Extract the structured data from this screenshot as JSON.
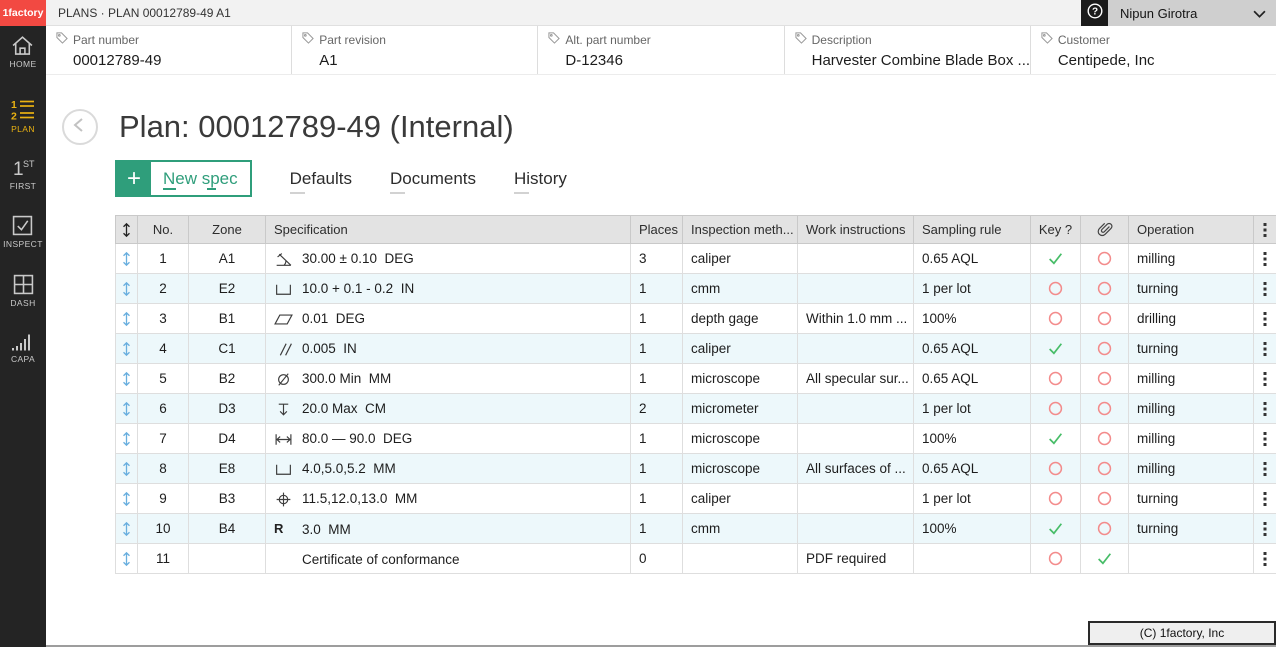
{
  "topbar": {
    "logo": "1factory",
    "breadcrumb": "PLANS · PLAN 00012789-49 A1",
    "user": "Nipun Girotra"
  },
  "fields": [
    {
      "label": "Part number",
      "value": "00012789-49"
    },
    {
      "label": "Part revision",
      "value": "A1"
    },
    {
      "label": "Alt. part number",
      "value": "D-12346"
    },
    {
      "label": "Description",
      "value": "Harvester Combine Blade Box ..."
    },
    {
      "label": "Customer",
      "value": "Centipede, Inc"
    }
  ],
  "sidebar": {
    "items": [
      {
        "label": "HOME",
        "active": false
      },
      {
        "label": "PLAN",
        "active": true
      },
      {
        "label": "FIRST",
        "active": false
      },
      {
        "label": "INSPECT",
        "active": false
      },
      {
        "label": "DASH",
        "active": false
      },
      {
        "label": "CAPA",
        "active": false
      }
    ]
  },
  "page": {
    "title": "Plan: 00012789-49 (Internal)"
  },
  "tabs": {
    "new_spec": "New spec",
    "defaults": "Defaults",
    "documents": "Documents",
    "history": "History"
  },
  "table": {
    "headers": {
      "no": "No.",
      "zone": "Zone",
      "spec": "Specification",
      "places": "Places",
      "method": "Inspection meth...",
      "work": "Work instructions",
      "sampling": "Sampling rule",
      "key": "Key ?",
      "operation": "Operation"
    },
    "rows": [
      {
        "no": "1",
        "zone": "A1",
        "symbol": "angularity",
        "spec": "30.00 ± 0.10  DEG",
        "places": "3",
        "method": "caliper",
        "work": "",
        "sampling": "0.65 AQL",
        "key": true,
        "attach": false,
        "operation": "milling"
      },
      {
        "no": "2",
        "zone": "E2",
        "symbol": "counterbore",
        "spec": "10.0 + 0.1 - 0.2  IN",
        "places": "1",
        "method": "cmm",
        "work": "",
        "sampling": "1 per lot",
        "key": false,
        "attach": false,
        "operation": "turning"
      },
      {
        "no": "3",
        "zone": "B1",
        "symbol": "flatness",
        "spec": "0.01  DEG",
        "places": "1",
        "method": "depth gage",
        "work": "Within 1.0 mm ...",
        "sampling": "100%",
        "key": false,
        "attach": false,
        "operation": "drilling"
      },
      {
        "no": "4",
        "zone": "C1",
        "symbol": "parallelism",
        "spec": "0.005  IN",
        "places": "1",
        "method": "caliper",
        "work": "",
        "sampling": "0.65 AQL",
        "key": true,
        "attach": false,
        "operation": "turning"
      },
      {
        "no": "5",
        "zone": "B2",
        "symbol": "diameter",
        "spec": "300.0 Min  MM",
        "places": "1",
        "method": "microscope",
        "work": "All specular sur...",
        "sampling": "0.65 AQL",
        "key": false,
        "attach": false,
        "operation": "milling"
      },
      {
        "no": "6",
        "zone": "D3",
        "symbol": "depth",
        "spec": "20.0 Max  CM",
        "places": "2",
        "method": "micrometer",
        "work": "",
        "sampling": "1 per lot",
        "key": false,
        "attach": false,
        "operation": "milling"
      },
      {
        "no": "7",
        "zone": "D4",
        "symbol": "length",
        "spec": "80.0 — 90.0  DEG",
        "places": "1",
        "method": "microscope",
        "work": "",
        "sampling": "100%",
        "key": true,
        "attach": false,
        "operation": "milling"
      },
      {
        "no": "8",
        "zone": "E8",
        "symbol": "counterbore",
        "spec": "4.0,5.0,5.2  MM",
        "places": "1",
        "method": "microscope",
        "work": "All surfaces of ...",
        "sampling": "0.65 AQL",
        "key": false,
        "attach": false,
        "operation": "milling"
      },
      {
        "no": "9",
        "zone": "B3",
        "symbol": "position",
        "spec": "11.5,12.0,13.0  MM",
        "places": "1",
        "method": "caliper",
        "work": "",
        "sampling": "1 per lot",
        "key": false,
        "attach": false,
        "operation": "turning"
      },
      {
        "no": "10",
        "zone": "B4",
        "symbol": "radius",
        "spec": "3.0  MM",
        "places": "1",
        "method": "cmm",
        "work": "",
        "sampling": "100%",
        "key": true,
        "attach": false,
        "operation": "turning"
      },
      {
        "no": "11",
        "zone": "",
        "symbol": "",
        "spec": "Certificate of conformance",
        "places": "0",
        "method": "",
        "work": "PDF required",
        "sampling": "",
        "key": false,
        "attach": true,
        "operation": ""
      }
    ]
  },
  "footer": {
    "copyright": "(C) 1factory, Inc"
  },
  "colors": {
    "brand_red": "#f24942",
    "accent_green": "#2f9e7b",
    "active_gold": "#eab212",
    "check_green": "#47bd68",
    "circle_red": "#f38b8b",
    "handle_blue": "#68aede",
    "alt_row": "#edf8fb"
  }
}
